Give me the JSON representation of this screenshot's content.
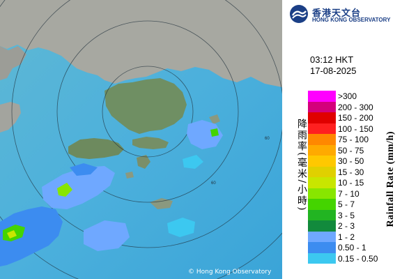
{
  "header": {
    "org_name_zh": "香港天文台",
    "org_name_en": "HONG KONG OBSERVATORY",
    "time": "03:12 HKT",
    "date": "17-08-2025"
  },
  "map": {
    "copyright": "© Hong Kong Observatory",
    "range_ring_label": "60"
  },
  "legend": {
    "label_zh": "降雨率(毫米/小時)",
    "label_en": "Rainfall Rate (mm/h)",
    "entries": [
      {
        "label": ">300",
        "color": "#ff00ff"
      },
      {
        "label": "200 - 300",
        "color": "#d4007c"
      },
      {
        "label": "150 - 200",
        "color": "#e00000"
      },
      {
        "label": "100 - 150",
        "color": "#ff2020"
      },
      {
        "label": "75 - 100",
        "color": "#ff8800"
      },
      {
        "label": "50 - 75",
        "color": "#ffaa00"
      },
      {
        "label": "30 - 50",
        "color": "#ffc800"
      },
      {
        "label": "15 - 30",
        "color": "#e0d000"
      },
      {
        "label": "10 - 15",
        "color": "#c8e600"
      },
      {
        "label": "7 - 10",
        "color": "#88e600"
      },
      {
        "label": "5 - 7",
        "color": "#44d400"
      },
      {
        "label": "3 - 5",
        "color": "#22b422"
      },
      {
        "label": "2 - 3",
        "color": "#128a3c"
      },
      {
        "label": "1 - 2",
        "color": "#6fa8ff"
      },
      {
        "label": "0.50 - 1",
        "color": "#3c8cf0"
      },
      {
        "label": "0.15 - 0.50",
        "color": "#3cc8f0"
      }
    ]
  }
}
